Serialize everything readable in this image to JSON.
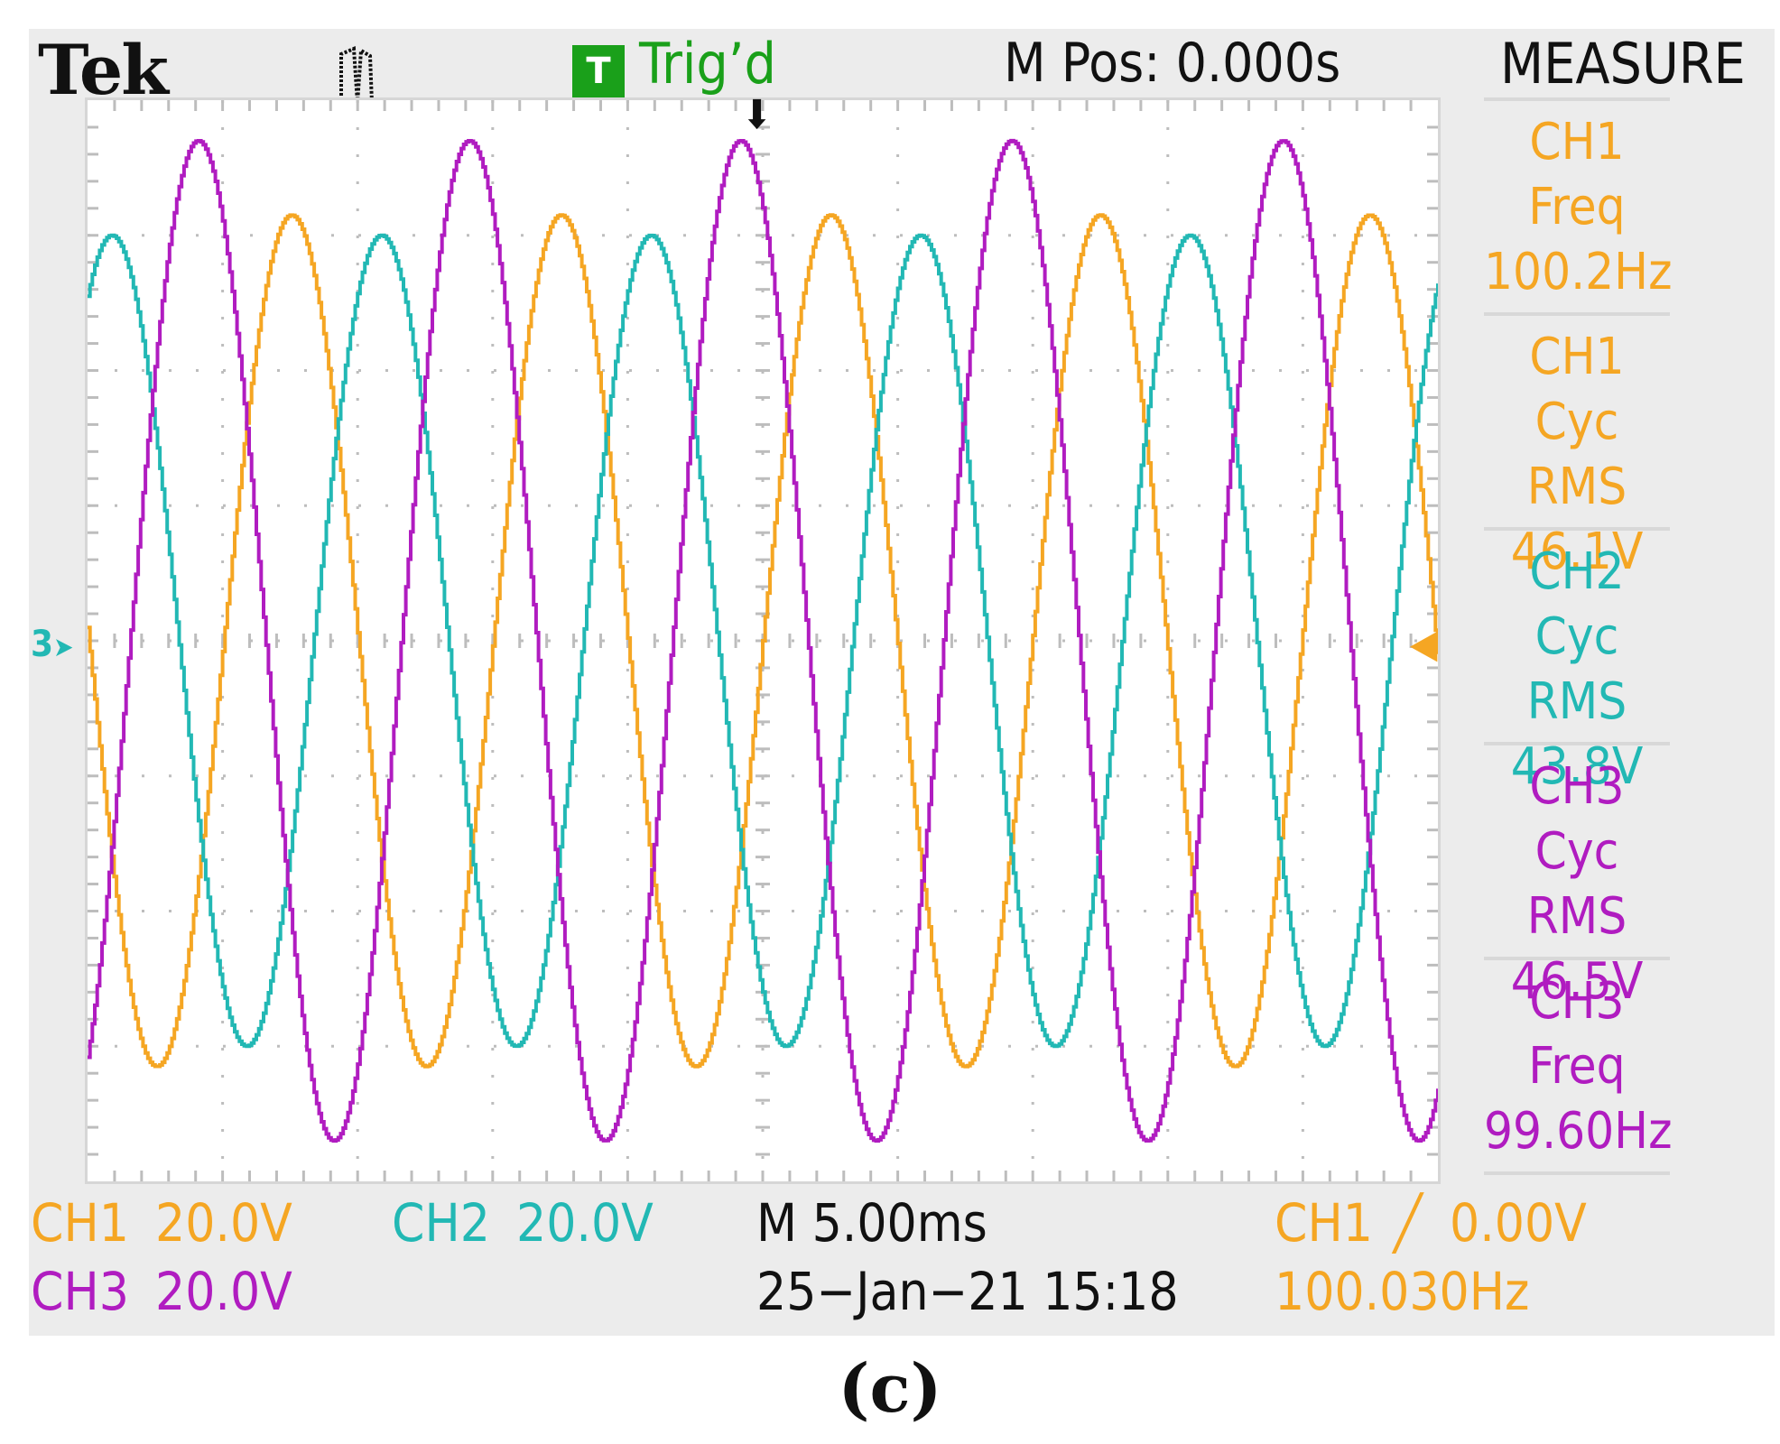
{
  "header": {
    "brand": "Tek",
    "trigger_badge": "T",
    "trigger_status": "Trig’d",
    "horizontal_position": "M Pos: 0.000s",
    "menu_title": "MEASURE"
  },
  "colors": {
    "ch1": "#f5a623",
    "ch2": "#22b8b4",
    "ch3": "#b01cc0",
    "trig": "#1aa01a",
    "grid": "#bdbdbd"
  },
  "measurements": [
    {
      "source": "CH1",
      "type": "Freq",
      "value": "100.2Hz",
      "color": "#f5a623"
    },
    {
      "source": "CH1",
      "type": "Cyc RMS",
      "value": "46.1V",
      "color": "#f5a623"
    },
    {
      "source": "CH2",
      "type": "Cyc RMS",
      "value": "43.8V",
      "color": "#22b8b4"
    },
    {
      "source": "CH3",
      "type": "Cyc RMS",
      "value": "46.5V",
      "color": "#b01cc0"
    },
    {
      "source": "CH3",
      "type": "Freq",
      "value": "99.60Hz",
      "color": "#b01cc0"
    }
  ],
  "footer": {
    "ch1_label": "CH1",
    "ch1_scale": "20.0V",
    "ch2_label": "CH2",
    "ch2_scale": "20.0V",
    "ch3_label": "CH3",
    "ch3_scale": "20.0V",
    "timebase": "M 5.00ms",
    "datetime": "25−Jan−21 15:18",
    "trigger_source": "CH1",
    "trigger_slope": "╱",
    "trigger_level": "0.00V",
    "trigger_freq": "100.030Hz"
  },
  "markers": {
    "ground_left": "3",
    "ground_right": "1"
  },
  "caption": "(c)",
  "chart_data": {
    "type": "line",
    "title": "",
    "x_unit": "ms",
    "xlim": [
      -25,
      25
    ],
    "ylim": [
      -80,
      80
    ],
    "x_divisions": 10,
    "y_divisions": 8,
    "volts_per_div": 20,
    "ms_per_div": 5,
    "series": [
      {
        "name": "CH1",
        "color": "#f5a623",
        "amplitude": 63,
        "frequency_hz": 100.2,
        "phase_deg": 0
      },
      {
        "name": "CH2",
        "color": "#22b8b4",
        "amplitude": 60,
        "frequency_hz": 100.2,
        "phase_deg": -120
      },
      {
        "name": "CH3",
        "color": "#b01cc0",
        "amplitude": 74,
        "frequency_hz": 99.6,
        "phase_deg": 120
      }
    ]
  }
}
